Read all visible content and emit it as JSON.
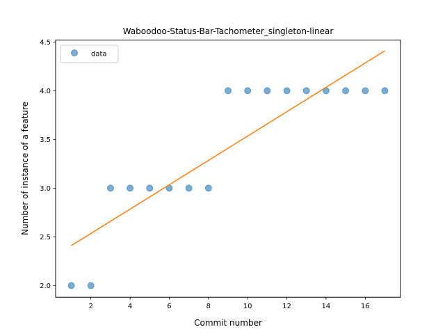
{
  "chart_data": {
    "type": "scatter",
    "title": "Waboodoo-Status-Bar-Tachometer_singleton-linear",
    "xlabel": "Commit number",
    "ylabel": "Number of instance of a feature",
    "xlim": [
      0.2,
      17.8
    ],
    "ylim": [
      1.88,
      4.52
    ],
    "x_ticks": [
      2,
      4,
      6,
      8,
      10,
      12,
      14,
      16
    ],
    "y_ticks": [
      2.0,
      2.5,
      3.0,
      3.5,
      4.0,
      4.5
    ],
    "grid": false,
    "legend_position": "upper-left",
    "series": [
      {
        "name": "data",
        "kind": "scatter",
        "color": "#1f77b4",
        "x": [
          1,
          2,
          3,
          4,
          5,
          6,
          7,
          8,
          9,
          10,
          11,
          12,
          13,
          14,
          15,
          16,
          17
        ],
        "y": [
          2,
          2,
          3,
          3,
          3,
          3,
          3,
          3,
          4,
          4,
          4,
          4,
          4,
          4,
          4,
          4,
          4
        ]
      },
      {
        "kind": "line",
        "color": "#ff7f0e",
        "x": [
          1,
          17
        ],
        "y": [
          2.41,
          4.41
        ]
      }
    ]
  }
}
